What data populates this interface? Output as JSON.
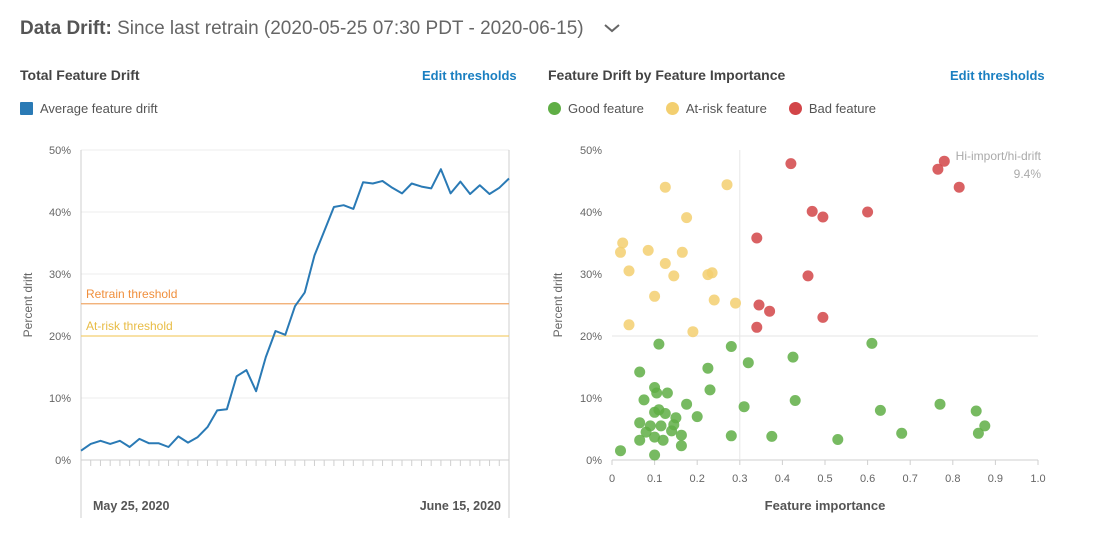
{
  "header": {
    "label": "Data Drift:",
    "value": "Since last retrain (2020-05-25 07:30 PDT - 2020-06-15)"
  },
  "left_panel": {
    "title": "Total Feature Drift",
    "edit_label": "Edit thresholds",
    "legend": "Average feature drift"
  },
  "right_panel": {
    "title": "Feature Drift by Feature Importance",
    "edit_label": "Edit thresholds",
    "legend": [
      "Good feature",
      "At-risk feature",
      "Bad feature"
    ]
  },
  "colors": {
    "line": "#2a7ab5",
    "good": "#5fae45",
    "risk": "#f3cf70",
    "bad": "#d24548",
    "retrain": "#f0a869",
    "atrisk": "#f3cf70"
  },
  "chart_data": [
    {
      "type": "line",
      "title": "Total Feature Drift",
      "ylabel": "Percent drift",
      "ylim": [
        0,
        50
      ],
      "yticks": [
        "0%",
        "10%",
        "20%",
        "30%",
        "40%",
        "50%"
      ],
      "x_tick_labels": [
        "May 25, 2020",
        "June 15, 2020"
      ],
      "series": [
        {
          "name": "Average feature drift",
          "values": [
            1.5,
            2.6,
            3.1,
            2.6,
            3.1,
            2.1,
            3.4,
            2.7,
            2.7,
            2.1,
            3.8,
            2.8,
            3.7,
            5.3,
            8.0,
            8.2,
            13.5,
            14.5,
            11.1,
            16.6,
            20.8,
            20.2,
            24.8,
            27.0,
            33.0,
            36.9,
            40.8,
            41.1,
            40.5,
            44.8,
            44.6,
            45.0,
            43.9,
            43.0,
            44.6,
            44.1,
            43.8,
            46.9,
            43.0,
            44.9,
            42.9,
            44.3,
            42.9,
            43.9,
            45.4
          ]
        }
      ],
      "thresholds": [
        {
          "label": "Retrain threshold",
          "value": 25.2
        },
        {
          "label": "At-risk threshold",
          "value": 20.0
        }
      ],
      "grid": true,
      "legend_position": "top-left"
    },
    {
      "type": "scatter",
      "title": "Feature Drift by Feature Importance",
      "xlabel": "Feature importance",
      "ylabel": "Percent drift",
      "xlim": [
        0,
        1.0
      ],
      "ylim": [
        0,
        50
      ],
      "xticks": [
        "0",
        "0.1",
        "0.2",
        "0.3",
        "0.4",
        "0.5",
        "0.6",
        "0.7",
        "0.8",
        "0.9",
        "1.0"
      ],
      "yticks": [
        "0%",
        "10%",
        "20%",
        "30%",
        "40%",
        "50%"
      ],
      "quadrant_label": "Hi-import/hi-drift",
      "quadrant_value": "9.4%",
      "quadrant_split": {
        "x": 0.3,
        "y": 20
      },
      "legend_position": "top-left",
      "series": [
        {
          "name": "Good feature",
          "points": [
            [
              0.02,
              1.5
            ],
            [
              0.065,
              3.2
            ],
            [
              0.065,
              6
            ],
            [
              0.065,
              14.2
            ],
            [
              0.075,
              9.7
            ],
            [
              0.08,
              4.5
            ],
            [
              0.09,
              5.5
            ],
            [
              0.1,
              3.7
            ],
            [
              0.1,
              7.7
            ],
            [
              0.1,
              0.8
            ],
            [
              0.1,
              11.7
            ],
            [
              0.105,
              10.8
            ],
            [
              0.11,
              8.1
            ],
            [
              0.115,
              5.5
            ],
            [
              0.12,
              3.2
            ],
            [
              0.125,
              7.5
            ],
            [
              0.13,
              10.8
            ],
            [
              0.14,
              4.7
            ],
            [
              0.145,
              5.7
            ],
            [
              0.15,
              6.8
            ],
            [
              0.163,
              4
            ],
            [
              0.163,
              2.3
            ],
            [
              0.175,
              9
            ],
            [
              0.11,
              18.7
            ],
            [
              0.2,
              7
            ],
            [
              0.225,
              14.8
            ],
            [
              0.23,
              11.3
            ],
            [
              0.28,
              18.3
            ],
            [
              0.28,
              3.9
            ],
            [
              0.31,
              8.6
            ],
            [
              0.32,
              15.7
            ],
            [
              0.375,
              3.8
            ],
            [
              0.425,
              16.6
            ],
            [
              0.43,
              9.6
            ],
            [
              0.53,
              3.3
            ],
            [
              0.61,
              18.8
            ],
            [
              0.63,
              8
            ],
            [
              0.68,
              4.3
            ],
            [
              0.77,
              9
            ],
            [
              0.855,
              7.9
            ],
            [
              0.86,
              4.3
            ],
            [
              0.875,
              5.5
            ]
          ]
        },
        {
          "name": "At-risk feature",
          "points": [
            [
              0.025,
              35
            ],
            [
              0.02,
              33.5
            ],
            [
              0.04,
              30.5
            ],
            [
              0.04,
              21.8
            ],
            [
              0.085,
              33.8
            ],
            [
              0.125,
              44
            ],
            [
              0.125,
              31.7
            ],
            [
              0.1,
              26.4
            ],
            [
              0.145,
              29.7
            ],
            [
              0.165,
              33.5
            ],
            [
              0.175,
              39.1
            ],
            [
              0.19,
              20.7
            ],
            [
              0.225,
              29.9
            ],
            [
              0.235,
              30.2
            ],
            [
              0.24,
              25.8
            ],
            [
              0.27,
              44.4
            ],
            [
              0.29,
              25.3
            ]
          ]
        },
        {
          "name": "Bad feature",
          "points": [
            [
              0.42,
              47.8
            ],
            [
              0.34,
              35.8
            ],
            [
              0.345,
              25
            ],
            [
              0.34,
              21.4
            ],
            [
              0.37,
              24
            ],
            [
              0.46,
              29.7
            ],
            [
              0.47,
              40.1
            ],
            [
              0.495,
              39.2
            ],
            [
              0.495,
              23
            ],
            [
              0.6,
              40
            ],
            [
              0.765,
              46.9
            ],
            [
              0.78,
              48.2
            ],
            [
              0.815,
              44
            ]
          ]
        }
      ]
    }
  ]
}
